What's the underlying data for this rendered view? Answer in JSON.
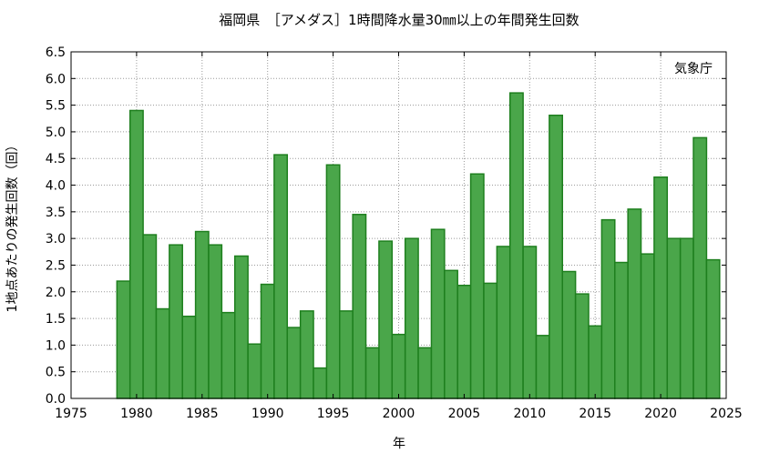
{
  "chart_data": {
    "type": "bar",
    "title": "福岡県　［アメダス］1時間降水量30㎜以上の年間発生回数",
    "xlabel": "年",
    "ylabel": "1地点あたりの発生回数（回）",
    "annotation": "気象庁",
    "xlim": [
      1975,
      2025
    ],
    "ylim": [
      0,
      6.5
    ],
    "x_ticks": [
      1975,
      1980,
      1985,
      1990,
      1995,
      2000,
      2005,
      2010,
      2015,
      2020,
      2025
    ],
    "y_ticks": [
      "0.0",
      "0.5",
      "1.0",
      "1.5",
      "2.0",
      "2.5",
      "3.0",
      "3.5",
      "4.0",
      "4.5",
      "5.0",
      "5.5",
      "6.0",
      "6.5"
    ],
    "grid": true,
    "bar_color": "#4aa64a",
    "bar_edge_color": "#1e7f1e",
    "x": [
      1979,
      1980,
      1981,
      1982,
      1983,
      1984,
      1985,
      1986,
      1987,
      1988,
      1989,
      1990,
      1991,
      1992,
      1993,
      1994,
      1995,
      1996,
      1997,
      1998,
      1999,
      2000,
      2001,
      2002,
      2003,
      2004,
      2005,
      2006,
      2007,
      2008,
      2009,
      2010,
      2011,
      2012,
      2013,
      2014,
      2015,
      2016,
      2017,
      2018,
      2019,
      2020,
      2021,
      2022,
      2023,
      2024
    ],
    "values": [
      2.2,
      5.4,
      3.07,
      1.68,
      2.88,
      1.54,
      3.13,
      2.88,
      1.61,
      2.67,
      1.02,
      2.14,
      4.57,
      1.33,
      1.64,
      0.57,
      4.38,
      1.64,
      3.45,
      0.95,
      2.95,
      1.2,
      3.0,
      0.95,
      3.17,
      2.4,
      2.12,
      4.21,
      2.16,
      2.85,
      5.73,
      2.85,
      1.18,
      5.31,
      2.38,
      1.96,
      1.36,
      3.35,
      2.55,
      3.55,
      2.71,
      4.15,
      3.0,
      3.0,
      4.89,
      2.6
    ]
  }
}
